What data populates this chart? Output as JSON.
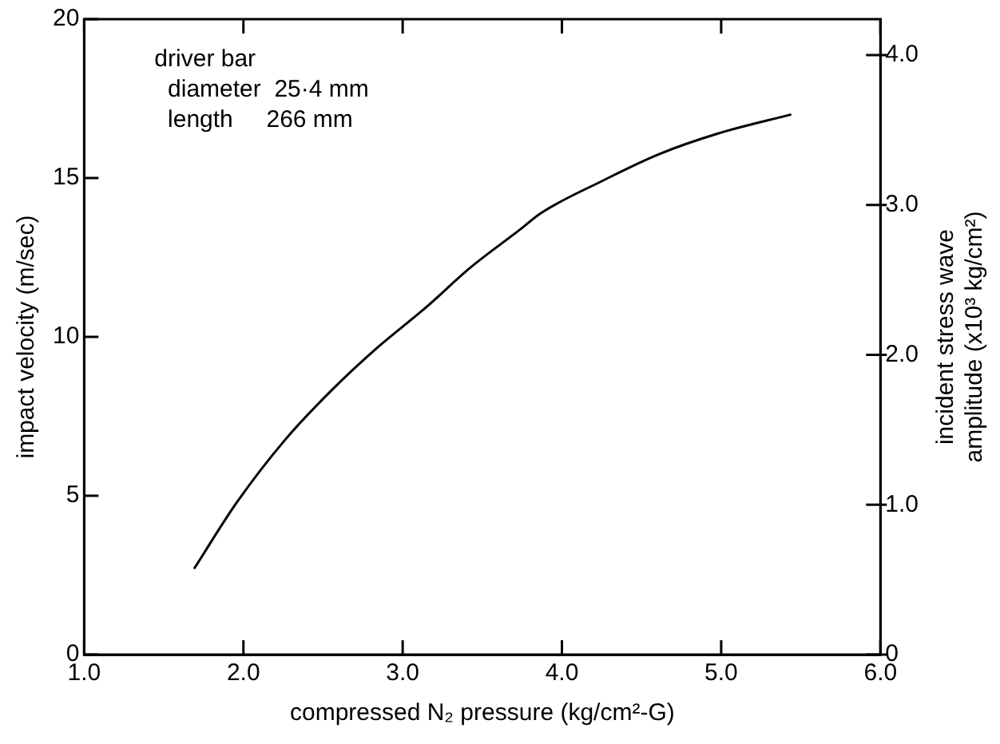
{
  "chart_data": {
    "type": "line",
    "xlabel": "compressed N₂ pressure (kg/cm²-G)",
    "ylabel": "impact velocity (m/sec)",
    "y2label": "incident stress wave\namplitude (x10³ kg/cm²)",
    "annotations": [
      "driver bar",
      "  diameter  25·4 mm",
      "  length     266 mm"
    ],
    "series": [
      {
        "color": "#000000",
        "x": [
          1.69,
          1.96,
          2.26,
          2.55,
          2.85,
          3.14,
          3.43,
          3.73,
          3.87,
          4.25,
          4.61,
          4.98,
          5.44
        ],
        "values": [
          2.7,
          4.8,
          6.75,
          8.3,
          9.7,
          10.9,
          12.2,
          13.35,
          13.9,
          14.9,
          15.75,
          16.4,
          17.0
        ]
      }
    ],
    "xlim": [
      1,
      6
    ],
    "xticks": [
      {
        "value": 1,
        "label": "1.0"
      },
      {
        "value": 2,
        "label": "2.0"
      },
      {
        "value": 3,
        "label": "3.0"
      },
      {
        "value": 4,
        "label": "4.0"
      },
      {
        "value": 5,
        "label": "5.0"
      },
      {
        "value": 6,
        "label": "6.0"
      }
    ],
    "ylim": [
      0,
      20
    ],
    "yticks": [
      0,
      5,
      10,
      15,
      20
    ],
    "y2lim": [
      0,
      4.24
    ],
    "y2ticks": [
      0,
      {
        "value": 1,
        "label": "1.0"
      },
      {
        "value": 2,
        "label": "2.0"
      },
      {
        "value": 3,
        "label": "3.0"
      },
      {
        "value": 4,
        "label": "4.0"
      }
    ],
    "marker": "none",
    "line_style": "solid",
    "grid": false,
    "legend": false
  }
}
